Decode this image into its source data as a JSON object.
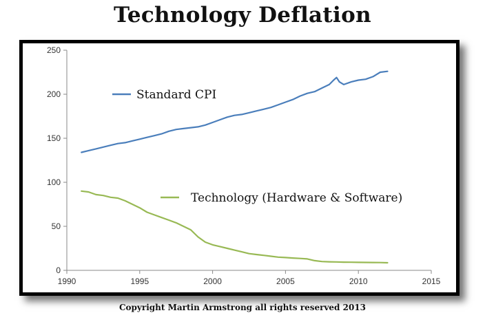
{
  "chart_data": {
    "type": "line",
    "title": "Technology Deflation",
    "xlabel": "",
    "ylabel": "",
    "xlim": [
      1990,
      2015
    ],
    "ylim": [
      0,
      250
    ],
    "x_ticks": [
      1990,
      1995,
      2000,
      2005,
      2010,
      2015
    ],
    "y_ticks": [
      0,
      50,
      100,
      150,
      200,
      250
    ],
    "grid": false,
    "colors": {
      "cpi": "#4a7ebb",
      "tech": "#98b954"
    },
    "series": [
      {
        "name": "Standard CPI",
        "x": [
          1991.0,
          1991.5,
          1992.0,
          1992.5,
          1993.0,
          1993.5,
          1994.0,
          1994.5,
          1995.0,
          1995.5,
          1996.0,
          1996.5,
          1997.0,
          1997.5,
          1998.0,
          1998.5,
          1999.0,
          1999.5,
          2000.0,
          2000.5,
          2001.0,
          2001.5,
          2002.0,
          2002.5,
          2003.0,
          2003.5,
          2004.0,
          2004.5,
          2005.0,
          2005.5,
          2006.0,
          2006.5,
          2007.0,
          2007.5,
          2008.0,
          2008.3,
          2008.5,
          2008.7,
          2009.0,
          2009.5,
          2010.0,
          2010.5,
          2011.0,
          2011.5,
          2012.0
        ],
        "values": [
          134,
          136,
          138,
          140,
          142,
          144,
          145,
          147,
          149,
          151,
          153,
          155,
          158,
          160,
          161,
          162,
          163,
          165,
          168,
          171,
          174,
          176,
          177,
          179,
          181,
          183,
          185,
          188,
          191,
          194,
          198,
          201,
          203,
          207,
          211,
          216,
          219,
          214,
          211,
          214,
          216,
          217,
          220,
          225,
          226
        ]
      },
      {
        "name": "Technology (Hardware & Software)",
        "x": [
          1991.0,
          1991.5,
          1992.0,
          1992.5,
          1993.0,
          1993.5,
          1994.0,
          1994.5,
          1995.0,
          1995.5,
          1996.0,
          1996.5,
          1997.0,
          1997.5,
          1998.0,
          1998.5,
          1999.0,
          1999.5,
          2000.0,
          2000.5,
          2001.0,
          2001.5,
          2002.0,
          2002.5,
          2003.0,
          2003.5,
          2004.0,
          2004.5,
          2005.0,
          2005.5,
          2006.0,
          2006.5,
          2007.0,
          2007.5,
          2008.0,
          2008.5,
          2009.0,
          2009.5,
          2010.0,
          2010.5,
          2011.0,
          2011.5,
          2012.0
        ],
        "values": [
          90,
          89,
          86,
          85,
          83,
          82,
          79,
          75,
          71,
          66,
          63,
          60,
          57,
          54,
          50,
          46,
          38,
          32,
          29,
          27,
          25,
          23,
          21,
          19,
          18,
          17,
          16,
          15,
          14.5,
          14,
          13.5,
          13,
          11,
          10,
          9.7,
          9.5,
          9.3,
          9.2,
          9.1,
          9,
          8.9,
          8.8,
          8.6
        ]
      }
    ],
    "legend_placement": "inline"
  },
  "footer": {
    "copyright": "Copyright Martin Armstrong all rights reserved 2013"
  }
}
